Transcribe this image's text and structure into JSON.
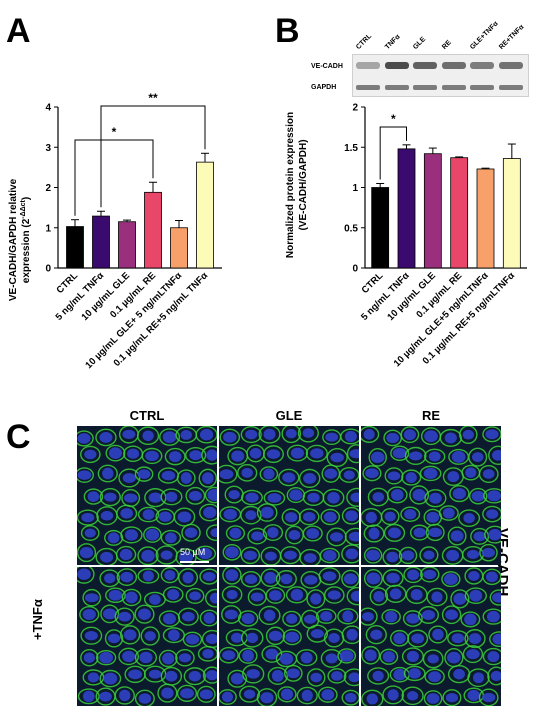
{
  "panels": {
    "a": "A",
    "b": "B",
    "c": "C"
  },
  "chart_data": [
    {
      "type": "bar",
      "panel": "A",
      "ylabel_line1": "VE-CADH/GAPDH relative",
      "ylabel_line2": "expression (2",
      "ylabel_sup": "-ΔΔct",
      "ylabel_end": ")",
      "ylim": [
        0,
        4
      ],
      "yticks": [
        "0",
        "1",
        "2",
        "3",
        "4"
      ],
      "categories": [
        "CTRL",
        "5 ng/mL TNFα",
        "10 µg/mL GLE",
        "0.1 µg/mL RE",
        "10 µg/mL GLE+ 5 ng/mLTNFα",
        "0.1 µg/mL RE+5 ng/mL TNFα"
      ],
      "values": [
        1.03,
        1.29,
        1.15,
        1.88,
        1.0,
        2.63
      ],
      "errors": [
        0.17,
        0.12,
        0.04,
        0.25,
        0.18,
        0.22
      ],
      "colors": [
        "#000000",
        "#3a0a6e",
        "#9a2f7e",
        "#e8476a",
        "#f7a06a",
        "#fdfbb8"
      ],
      "significance": [
        {
          "from": 0,
          "to": 3,
          "label": "*"
        },
        {
          "from": 1,
          "to": 5,
          "label": "**"
        }
      ]
    },
    {
      "type": "bar",
      "panel": "B",
      "ylabel_line1": "Normalized protein expression",
      "ylabel_line2": "(VE-CADH/GAPDH)",
      "ylim": [
        0,
        2
      ],
      "yticks": [
        "0",
        "0.5",
        "1",
        "1.5",
        "2"
      ],
      "categories": [
        "CTRL",
        "5 ng/mL TNFα",
        "10 µg/mL GLE",
        "0.1 µg/mL RE",
        "10 µg/mL GLE+5 ng/mLTNFα",
        "0.1 µg/mL RE+5 ng/mLTNFα"
      ],
      "values": [
        1.0,
        1.48,
        1.42,
        1.37,
        1.23,
        1.36
      ],
      "errors": [
        0.05,
        0.05,
        0.07,
        0.01,
        0.01,
        0.18
      ],
      "colors": [
        "#000000",
        "#3a0a6e",
        "#9a2f7e",
        "#e8476a",
        "#f7a06a",
        "#fdfbb8"
      ],
      "significance": [
        {
          "from": 0,
          "to": 1,
          "label": "*"
        }
      ]
    }
  ],
  "blot": {
    "lanes": [
      "CTRL",
      "TNFα",
      "GLE",
      "RE",
      "GLE+TNFα",
      "RE+TNFα"
    ],
    "rows": [
      "VE-CADH",
      "GAPDH"
    ]
  },
  "micrograph": {
    "columns": [
      "CTRL",
      "GLE",
      "RE"
    ],
    "row_label": "+TNFα",
    "stain_label": "VE-CADH",
    "scale_bar": "50 µM"
  }
}
